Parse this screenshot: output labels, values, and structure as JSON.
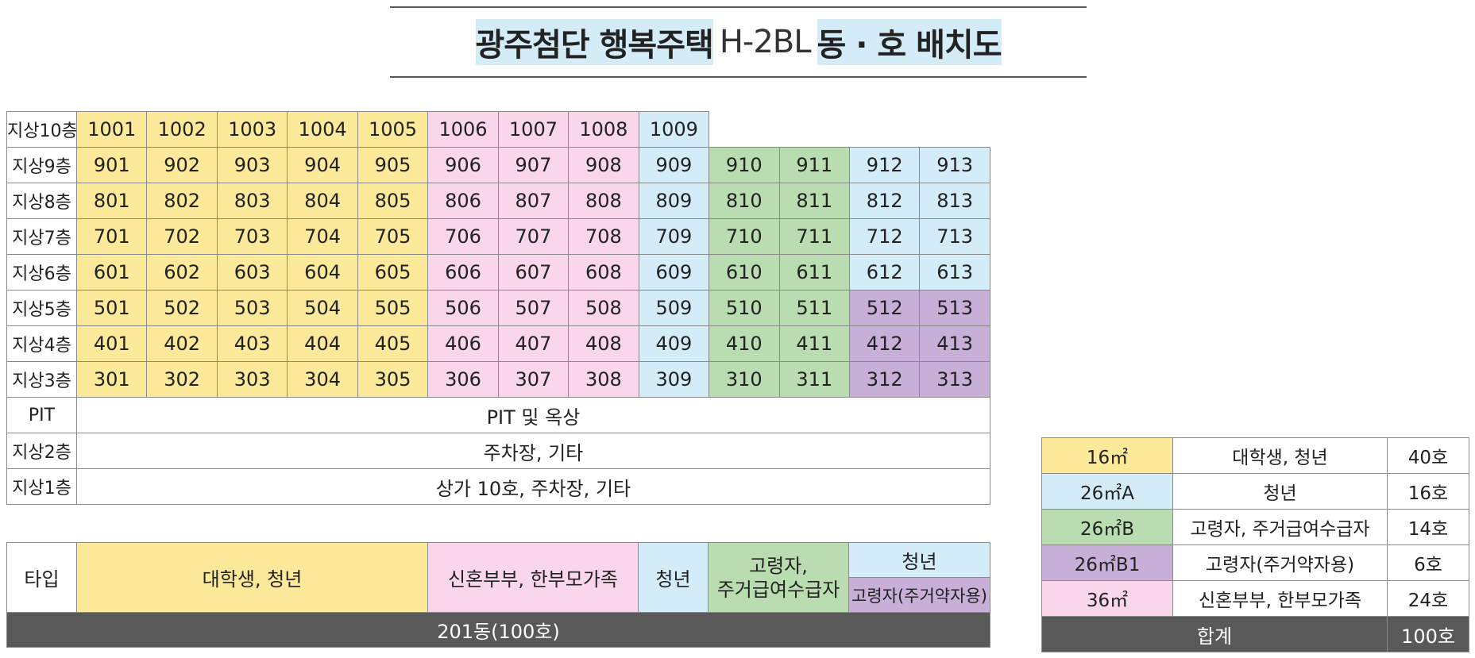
{
  "title": {
    "bold_part1": "광주첨단 행복주택",
    "light_part": "H-2BL",
    "bold_part2": "동 · 호 배치도"
  },
  "grid": {
    "floor_labels": [
      "지상10층",
      "지상9층",
      "지상8층",
      "지상7층",
      "지상6층",
      "지상5층",
      "지상4층",
      "지상3층"
    ],
    "rows": [
      [
        "1001",
        "1002",
        "1003",
        "1004",
        "1005",
        "1006",
        "1007",
        "1008",
        "1009"
      ],
      [
        "901",
        "902",
        "903",
        "904",
        "905",
        "906",
        "907",
        "908",
        "909",
        "910",
        "911",
        "912",
        "913"
      ],
      [
        "801",
        "802",
        "803",
        "804",
        "805",
        "806",
        "807",
        "808",
        "809",
        "810",
        "811",
        "812",
        "813"
      ],
      [
        "701",
        "702",
        "703",
        "704",
        "705",
        "706",
        "707",
        "708",
        "709",
        "710",
        "711",
        "712",
        "713"
      ],
      [
        "601",
        "602",
        "603",
        "604",
        "605",
        "606",
        "607",
        "608",
        "609",
        "610",
        "611",
        "612",
        "613"
      ],
      [
        "501",
        "502",
        "503",
        "504",
        "505",
        "506",
        "507",
        "508",
        "509",
        "510",
        "511",
        "512",
        "513"
      ],
      [
        "401",
        "402",
        "403",
        "404",
        "405",
        "406",
        "407",
        "408",
        "409",
        "410",
        "411",
        "412",
        "413"
      ],
      [
        "301",
        "302",
        "303",
        "304",
        "305",
        "306",
        "307",
        "308",
        "309",
        "310",
        "311",
        "312",
        "313"
      ]
    ],
    "pit": {
      "label": "PIT",
      "text": "PIT 및 옥상"
    },
    "floor2": {
      "label": "지상2층",
      "text": "주차장, 기타"
    },
    "floor1": {
      "label": "지상1층",
      "text": "상가 10호, 주차장, 기타"
    }
  },
  "types": {
    "label": "타입",
    "student": "대학생, 청년",
    "newlywed": "신혼부부, 한부모가족",
    "youth": "청년",
    "elderly_line1": "고령자,",
    "elderly_line2": "주거급여수급자",
    "youth2": "청년",
    "elderly_self": "고령자(주거약자용)",
    "building": "201동(100호)"
  },
  "legend": {
    "rows": [
      {
        "type": "16㎡",
        "target": "대학생, 청년",
        "count": "40호"
      },
      {
        "type": "26㎡A",
        "target": "청년",
        "count": "16호"
      },
      {
        "type": "26㎡B",
        "target": "고령자, 주거급여수급자",
        "count": "14호"
      },
      {
        "type": "26㎡B1",
        "target": "고령자(주거약자용)",
        "count": "6호"
      },
      {
        "type": "36㎡",
        "target": "신혼부부, 한부모가족",
        "count": "24호"
      }
    ],
    "total_label": "합계",
    "total_count": "100호"
  },
  "colors": {
    "yellow": "#fde99a",
    "pink": "#f9d6ea",
    "blue": "#d3ecf8",
    "green": "#b9dcb0",
    "purple": "#c8afd8",
    "dark": "#595959"
  }
}
